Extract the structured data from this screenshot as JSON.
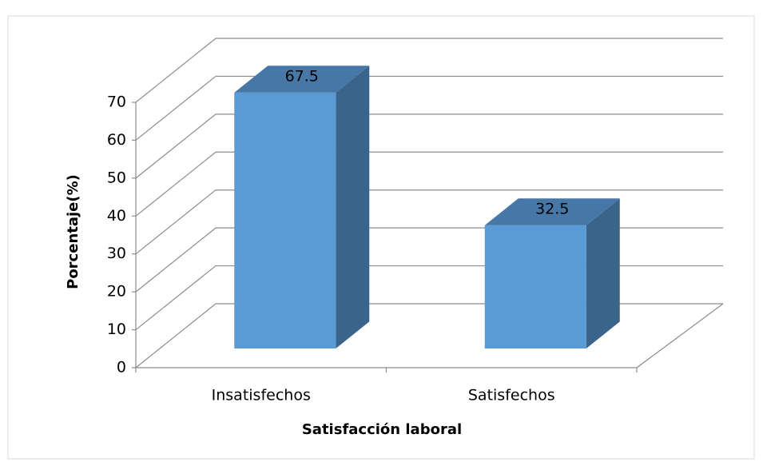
{
  "chart_data": {
    "type": "bar3d",
    "categories": [
      "Insatisfechos",
      "Satisfechos"
    ],
    "values": [
      67.5,
      32.5
    ],
    "color": "#5b9bd5",
    "ylim": [
      0,
      70
    ],
    "yticks": [
      0,
      10,
      20,
      30,
      40,
      50,
      60,
      70
    ],
    "ylabel": "Porcentaje(%)",
    "xlabel": "Satisfacción laboral",
    "grid": true
  }
}
